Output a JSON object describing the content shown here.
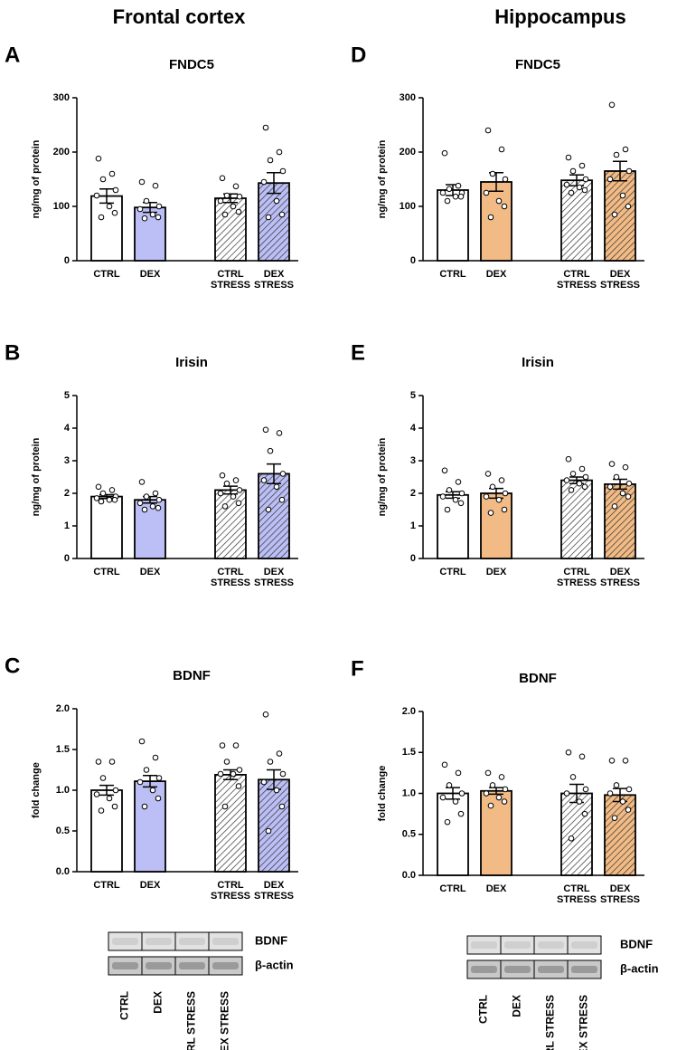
{
  "column_titles": [
    "Frontal cortex",
    "Hippocampus"
  ],
  "chart_data": [
    {
      "type": "bar",
      "panel": "A",
      "title": "FNDC5",
      "ylabel": "ng/mg of protein",
      "categories": [
        "CTRL",
        "DEX",
        "CTRL\nSTRESS",
        "DEX\nSTRESS"
      ],
      "values": [
        119,
        98,
        115,
        143
      ],
      "errors": [
        13,
        9,
        8,
        19
      ],
      "points": [
        [
          188,
          160,
          150,
          130,
          120,
          100,
          88,
          80
        ],
        [
          145,
          138,
          110,
          100,
          95,
          85,
          80,
          78
        ],
        [
          152,
          137,
          120,
          118,
          110,
          100,
          90,
          85
        ],
        [
          245,
          200,
          185,
          165,
          145,
          110,
          85,
          80
        ]
      ],
      "colors": [
        "#ffffff",
        "#bcbff5",
        "#ffffff",
        "#bcbff5"
      ],
      "hatched": [
        false,
        false,
        true,
        true
      ],
      "ylim": [
        0,
        300
      ],
      "yticks": [
        0,
        100,
        200,
        300
      ]
    },
    {
      "type": "bar",
      "panel": "B",
      "title": "Irisin",
      "ylabel": "ng/mg of protein",
      "categories": [
        "CTRL",
        "DEX",
        "CTRL\nSTRESS",
        "DEX\nSTRESS"
      ],
      "values": [
        1.9,
        1.8,
        2.1,
        2.6
      ],
      "errors": [
        0.06,
        0.1,
        0.12,
        0.3
      ],
      "points": [
        [
          2.2,
          2.1,
          2.0,
          1.9,
          1.85,
          1.8,
          1.8,
          1.75
        ],
        [
          2.35,
          2.0,
          1.9,
          1.8,
          1.7,
          1.6,
          1.55,
          1.5
        ],
        [
          2.55,
          2.4,
          2.3,
          2.1,
          2.0,
          1.9,
          1.7,
          1.6
        ],
        [
          3.95,
          3.85,
          3.3,
          2.6,
          2.4,
          2.2,
          1.8,
          1.5
        ]
      ],
      "colors": [
        "#ffffff",
        "#bcbff5",
        "#ffffff",
        "#bcbff5"
      ],
      "hatched": [
        false,
        false,
        true,
        true
      ],
      "ylim": [
        0,
        5
      ],
      "yticks": [
        0,
        1,
        2,
        3,
        4,
        5
      ]
    },
    {
      "type": "bar",
      "panel": "C",
      "title": "BDNF",
      "ylabel": "fold change",
      "categories": [
        "CTRL",
        "DEX",
        "CTRL\nSTRESS",
        "DEX\nSTRESS"
      ],
      "values": [
        1.0,
        1.11,
        1.19,
        1.13
      ],
      "errors": [
        0.06,
        0.07,
        0.06,
        0.12
      ],
      "points": [
        [
          1.35,
          1.35,
          1.15,
          1.0,
          0.95,
          0.9,
          0.8,
          0.75
        ],
        [
          1.6,
          1.4,
          1.25,
          1.15,
          1.1,
          1.0,
          0.9,
          0.8
        ],
        [
          1.55,
          1.55,
          1.35,
          1.25,
          1.2,
          1.2,
          1.05,
          0.8
        ],
        [
          1.93,
          1.45,
          1.35,
          1.2,
          1.1,
          1.0,
          0.8,
          0.5
        ]
      ],
      "colors": [
        "#ffffff",
        "#bcbff5",
        "#ffffff",
        "#bcbff5"
      ],
      "hatched": [
        false,
        false,
        true,
        true
      ],
      "ylim": [
        0,
        2
      ],
      "yticks": [
        {
          "value": 0,
          "label": "0.0"
        },
        {
          "value": 0.5,
          "label": "0.5"
        },
        {
          "value": 1,
          "label": "1.0"
        },
        {
          "value": 1.5,
          "label": "1.5"
        },
        {
          "value": 2,
          "label": "2.0"
        }
      ]
    },
    {
      "type": "bar",
      "panel": "D",
      "title": "FNDC5",
      "ylabel": "ng/mg of protein",
      "categories": [
        "CTRL",
        "DEX",
        "CTRL\nSTRESS",
        "DEX\nSTRESS"
      ],
      "values": [
        130,
        145,
        148,
        165
      ],
      "errors": [
        10,
        17,
        10,
        18
      ],
      "points": [
        [
          198,
          138,
          132,
          125,
          125,
          118,
          118,
          110
        ],
        [
          240,
          205,
          160,
          150,
          125,
          110,
          100,
          80
        ],
        [
          190,
          175,
          165,
          150,
          140,
          135,
          130,
          125
        ],
        [
          287,
          205,
          195,
          165,
          150,
          120,
          100,
          85
        ]
      ],
      "colors": [
        "#ffffff",
        "#f2bb85",
        "#ffffff",
        "#f2bb85"
      ],
      "hatched": [
        false,
        false,
        true,
        true
      ],
      "ylim": [
        0,
        300
      ],
      "yticks": [
        0,
        100,
        200,
        300
      ]
    },
    {
      "type": "bar",
      "panel": "E",
      "title": "Irisin",
      "ylabel": "ng/mg of protein",
      "categories": [
        "CTRL",
        "DEX",
        "CTRL\nSTRESS",
        "DEX\nSTRESS"
      ],
      "values": [
        1.95,
        2.0,
        2.4,
        2.28
      ],
      "errors": [
        0.1,
        0.15,
        0.1,
        0.15
      ],
      "points": [
        [
          2.7,
          2.35,
          2.1,
          2.0,
          1.9,
          1.8,
          1.7,
          1.5
        ],
        [
          2.6,
          2.4,
          2.2,
          2.0,
          1.9,
          1.8,
          1.5,
          1.4
        ],
        [
          3.05,
          2.75,
          2.6,
          2.5,
          2.4,
          2.3,
          2.2,
          2.1
        ],
        [
          2.9,
          2.8,
          2.5,
          2.3,
          2.2,
          2.0,
          1.9,
          1.6
        ]
      ],
      "colors": [
        "#ffffff",
        "#f2bb85",
        "#ffffff",
        "#f2bb85"
      ],
      "hatched": [
        false,
        false,
        true,
        true
      ],
      "ylim": [
        0,
        5
      ],
      "yticks": [
        0,
        1,
        2,
        3,
        4,
        5
      ]
    },
    {
      "type": "bar",
      "panel": "F",
      "title": "BDNF",
      "ylabel": "fold change",
      "categories": [
        "CTRL",
        "DEX",
        "CTRL\nSTRESS",
        "DEX\nSTRESS"
      ],
      "values": [
        1.0,
        1.03,
        1.0,
        0.98
      ],
      "errors": [
        0.07,
        0.04,
        0.11,
        0.08
      ],
      "points": [
        [
          1.35,
          1.25,
          1.1,
          1.0,
          0.95,
          0.9,
          0.75,
          0.65
        ],
        [
          1.25,
          1.2,
          1.1,
          1.05,
          1.0,
          0.95,
          0.9,
          0.85
        ],
        [
          1.5,
          1.45,
          1.2,
          1.05,
          1.0,
          0.9,
          0.75,
          0.45
        ],
        [
          1.4,
          1.4,
          1.1,
          1.05,
          1.0,
          0.9,
          0.8,
          0.7
        ]
      ],
      "colors": [
        "#ffffff",
        "#f2bb85",
        "#ffffff",
        "#f2bb85"
      ],
      "hatched": [
        false,
        false,
        true,
        true
      ],
      "ylim": [
        0,
        2
      ],
      "yticks": [
        {
          "value": 0,
          "label": "0.0"
        },
        {
          "value": 0.5,
          "label": "0.5"
        },
        {
          "value": 1,
          "label": "1.0"
        },
        {
          "value": 1.5,
          "label": "1.5"
        },
        {
          "value": 2,
          "label": "2.0"
        }
      ]
    }
  ],
  "blots": [
    {
      "bands": [
        "BDNF",
        "β-actin"
      ],
      "lanes": [
        "CTRL",
        "DEX",
        "CTRL STRESS",
        "DEX STRESS"
      ]
    },
    {
      "bands": [
        "BDNF",
        "β-actin"
      ],
      "lanes": [
        "CTRL",
        "DEX",
        "CTRL STRESS",
        "DEX STRESS"
      ]
    }
  ]
}
